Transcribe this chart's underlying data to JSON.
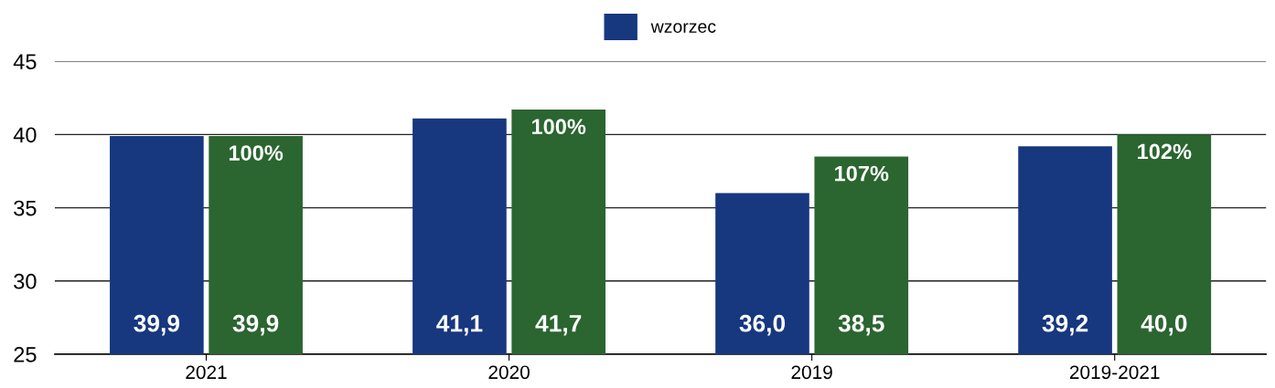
{
  "chart_data": {
    "type": "bar",
    "categories": [
      "2021",
      "2020",
      "2019",
      "2019-2021"
    ],
    "series": [
      {
        "name": "wzorzec",
        "color": "#17377f",
        "values": [
          39.9,
          41.1,
          36.0,
          39.2
        ],
        "value_labels": [
          "39,9",
          "41,1",
          "36,0",
          "39,2"
        ]
      },
      {
        "color": "#2b6530",
        "values": [
          39.9,
          41.7,
          38.5,
          40.0
        ],
        "value_labels": [
          "39,9",
          "41,7",
          "38,5",
          "40,0"
        ]
      }
    ],
    "annotations": [
      {
        "text": "100%",
        "x": "2021",
        "y": 39.9
      },
      {
        "text": "100%",
        "x": "2020",
        "y": 41.7
      },
      {
        "text": "107%",
        "x": "2019",
        "y": 38.5
      },
      {
        "text": "102%",
        "x": "2019-2021",
        "y": 40.0
      }
    ],
    "ylim": [
      25,
      45
    ],
    "yticks": [
      25,
      30,
      35,
      40,
      45
    ],
    "grid": "y",
    "legend": "top"
  }
}
